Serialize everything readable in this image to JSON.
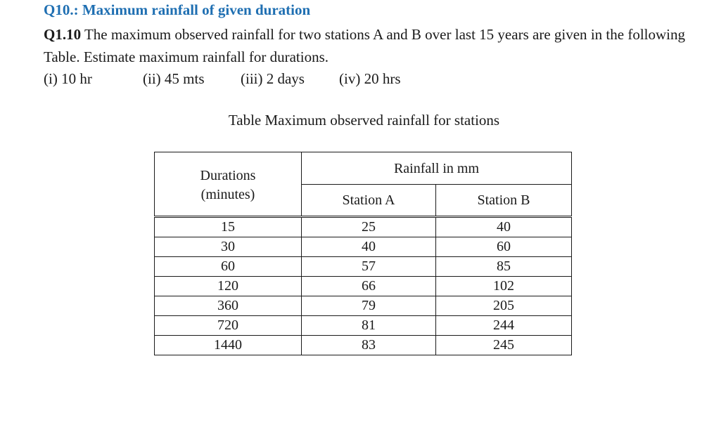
{
  "heading": "Q10.: Maximum rainfall of given duration",
  "question": {
    "number": "Q1.10",
    "text": "The maximum observed rainfall for two stations A and B over last 15 years are given in the following Table. Estimate maximum rainfall for durations."
  },
  "options": [
    "(i) 10 hr",
    "(ii) 45 mts",
    "(iii) 2 days",
    "(iv) 20 hrs"
  ],
  "table": {
    "caption": "Table  Maximum observed rainfall for stations",
    "duration_header_line1": "Durations",
    "duration_header_line2": "(minutes)",
    "rainfall_header": "Rainfall in mm",
    "station_a_header": "Station A",
    "station_b_header": "Station B",
    "rows": [
      {
        "duration": "15",
        "a": "25",
        "b": "40"
      },
      {
        "duration": "30",
        "a": "40",
        "b": "60"
      },
      {
        "duration": "60",
        "a": "57",
        "b": "85"
      },
      {
        "duration": "120",
        "a": "66",
        "b": "102"
      },
      {
        "duration": "360",
        "a": "79",
        "b": "205"
      },
      {
        "duration": "720",
        "a": "81",
        "b": "244"
      },
      {
        "duration": "1440",
        "a": "83",
        "b": "245"
      }
    ]
  }
}
